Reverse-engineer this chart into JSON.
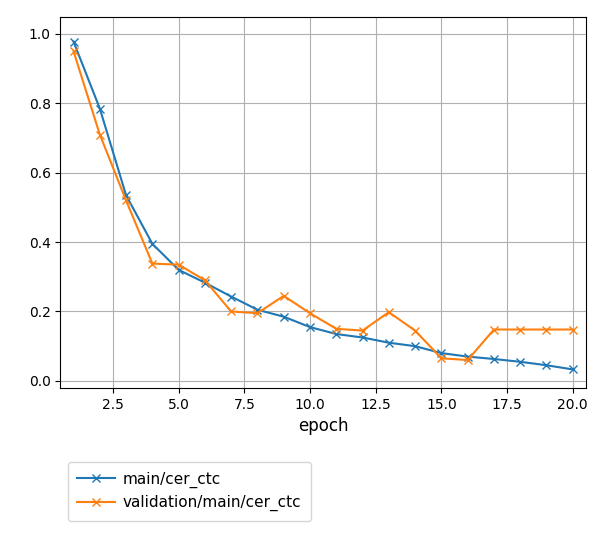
{
  "main_cer_ctc_x": [
    1,
    2,
    3,
    4,
    5,
    6,
    7,
    8,
    9,
    10,
    11,
    12,
    13,
    14,
    15,
    16,
    17,
    18,
    19,
    20
  ],
  "main_cer_ctc_y": [
    0.978,
    0.785,
    0.535,
    0.395,
    0.32,
    0.283,
    0.243,
    0.205,
    0.185,
    0.155,
    0.135,
    0.125,
    0.11,
    0.1,
    0.08,
    0.07,
    0.063,
    0.055,
    0.045,
    0.033
  ],
  "val_cer_ctc_x": [
    1,
    2,
    3,
    4,
    5,
    6,
    7,
    8,
    9,
    10,
    11,
    12,
    13,
    14,
    15,
    16,
    17,
    18,
    19,
    20
  ],
  "val_cer_ctc_y": [
    0.95,
    0.71,
    0.52,
    0.338,
    0.335,
    0.29,
    0.2,
    0.195,
    0.245,
    0.195,
    0.15,
    0.145,
    0.198,
    0.145,
    0.065,
    0.06,
    0.148,
    0.148,
    0.148,
    0.148
  ],
  "main_color": "#1f77b4",
  "val_color": "#ff7f0e",
  "xlabel": "epoch",
  "main_label": "main/cer_ctc",
  "val_label": "validation/main/cer_ctc",
  "xlim": [
    0.5,
    20.5
  ],
  "ylim": [
    -0.02,
    1.05
  ],
  "xticks": [
    2.5,
    5.0,
    7.5,
    10.0,
    12.5,
    15.0,
    17.5,
    20.0
  ],
  "yticks": [
    0.0,
    0.2,
    0.4,
    0.6,
    0.8,
    1.0
  ],
  "grid_color": "#b0b0b0",
  "background_color": "#ffffff",
  "marker_size": 6,
  "linewidth": 1.5
}
